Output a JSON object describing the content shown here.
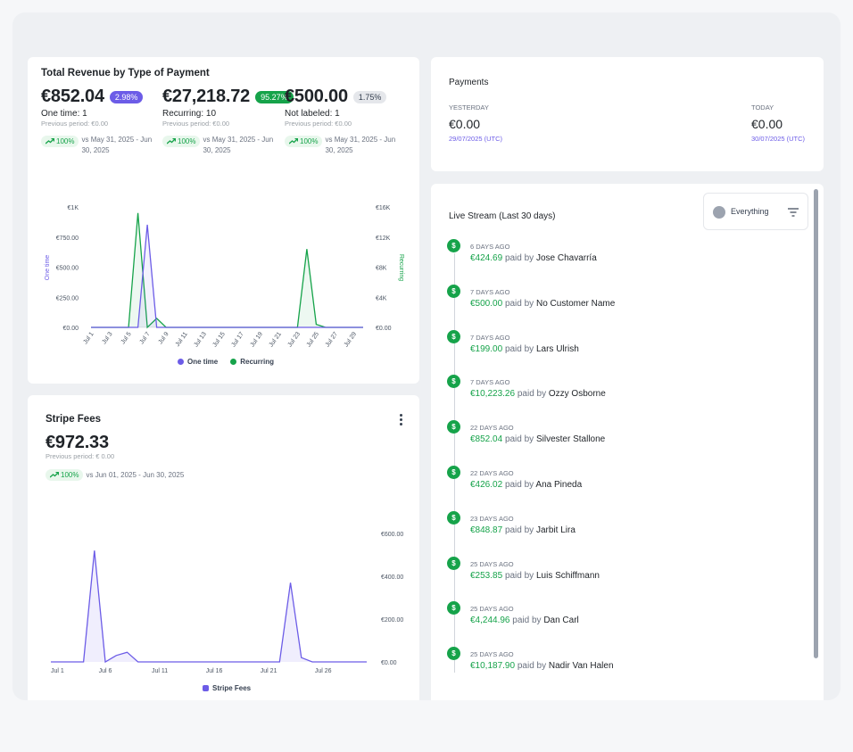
{
  "revenue": {
    "title": "Total Revenue by Type of Payment",
    "metrics": [
      {
        "amount": "€852.04",
        "badge": "2.98%",
        "badge_color": "#6c5ce7",
        "label": "One time: 1",
        "prev": "Previous period: €0.00",
        "trend": "100%",
        "vs": "vs May 31, 2025 - Jun 30, 2025"
      },
      {
        "amount": "€27,218.72",
        "badge": "95.27%",
        "badge_color": "#16a34a",
        "label": "Recurring: 10",
        "prev": "Previous period: €0.00",
        "trend": "100%",
        "vs": "vs May 31, 2025 - Jun 30, 2025"
      },
      {
        "amount": "€500.00",
        "badge": "1.75%",
        "badge_color": "#e5e7eb",
        "label": "Not labeled: 1",
        "prev": "Previous period: €0.00",
        "trend": "100%",
        "vs": "vs May 31, 2025 - Jun 30, 2025"
      }
    ],
    "legend": {
      "one_time": "One time",
      "recurring": "Recurring"
    }
  },
  "payments": {
    "title": "Payments",
    "yesterday_label": "YESTERDAY",
    "yesterday_value": "€0.00",
    "yesterday_date": "29/07/2025 (UTC)",
    "today_label": "TODAY",
    "today_value": "€0.00",
    "today_date": "30/07/2025 (UTC)"
  },
  "fees": {
    "title": "Stripe Fees",
    "amount": "€972.33",
    "prev": "Previous period: € 0.00",
    "trend": "100%",
    "vs": "vs Jun 01, 2025 - Jun 30, 2025",
    "legend": "Stripe Fees"
  },
  "stream": {
    "title": "Live Stream (Last 30 days)",
    "filter": "Everything",
    "paid_by": "paid by",
    "icon_symbol": "$",
    "events": [
      {
        "ago": "6 DAYS AGO",
        "amount": "€424.69",
        "name": "Jose Chavarría"
      },
      {
        "ago": "7 DAYS AGO",
        "amount": "€500.00",
        "name": "No Customer Name"
      },
      {
        "ago": "7 DAYS AGO",
        "amount": "€199.00",
        "name": "Lars Ulrish"
      },
      {
        "ago": "7 DAYS AGO",
        "amount": "€10,223.26",
        "name": "Ozzy Osborne"
      },
      {
        "ago": "22 DAYS AGO",
        "amount": "€852.04",
        "name": "Silvester Stallone"
      },
      {
        "ago": "22 DAYS AGO",
        "amount": "€426.02",
        "name": "Ana Pineda"
      },
      {
        "ago": "23 DAYS AGO",
        "amount": "€848.87",
        "name": "Jarbit Lira"
      },
      {
        "ago": "25 DAYS AGO",
        "amount": "€253.85",
        "name": "Luis Schiffmann"
      },
      {
        "ago": "25 DAYS AGO",
        "amount": "€4,244.96",
        "name": "Dan Carl"
      },
      {
        "ago": "25 DAYS AGO",
        "amount": "€10,187.90",
        "name": "Nadir Van Halen"
      }
    ]
  },
  "chart_data": [
    {
      "type": "area",
      "x": [
        "Jul 1",
        "Jul 2",
        "Jul 3",
        "Jul 4",
        "Jul 5",
        "Jul 6",
        "Jul 7",
        "Jul 8",
        "Jul 9",
        "Jul 10",
        "Jul 11",
        "Jul 12",
        "Jul 13",
        "Jul 14",
        "Jul 15",
        "Jul 16",
        "Jul 17",
        "Jul 18",
        "Jul 19",
        "Jul 20",
        "Jul 21",
        "Jul 22",
        "Jul 23",
        "Jul 24",
        "Jul 25",
        "Jul 26",
        "Jul 27",
        "Jul 28",
        "Jul 29",
        "Jul 30"
      ],
      "x_ticks": [
        "Jul 1",
        "Jul 3",
        "Jul 5",
        "Jul 7",
        "Jul 9",
        "Jul 11",
        "Jul 13",
        "Jul 15",
        "Jul 17",
        "Jul 19",
        "Jul 21",
        "Jul 23",
        "Jul 25",
        "Jul 27",
        "Jul 29"
      ],
      "series": [
        {
          "name": "One time",
          "axis": "left",
          "color": "#6c5ce7",
          "values": [
            0,
            0,
            0,
            0,
            0,
            0,
            852,
            0,
            0,
            0,
            0,
            0,
            0,
            0,
            0,
            0,
            0,
            0,
            0,
            0,
            0,
            0,
            0,
            0,
            0,
            0,
            0,
            0,
            0,
            0
          ]
        },
        {
          "name": "Recurring",
          "axis": "right",
          "color": "#16a34a",
          "values": [
            0,
            0,
            0,
            0,
            0,
            15200,
            0,
            1200,
            0,
            0,
            0,
            0,
            0,
            0,
            0,
            0,
            0,
            0,
            0,
            0,
            0,
            0,
            0,
            10400,
            400,
            0,
            0,
            0,
            0,
            0
          ]
        }
      ],
      "ylabel_left": "One time",
      "ylabel_right": "Recurring",
      "ylim_left": [
        0,
        1000
      ],
      "yticks_left": [
        "€0.00",
        "€250.00",
        "€500.00",
        "€750.00",
        "€1K"
      ],
      "ylim_right": [
        0,
        16000
      ],
      "yticks_right": [
        "€0.00",
        "€4K",
        "€8K",
        "€12K",
        "€16K"
      ]
    },
    {
      "type": "area",
      "x": [
        "Jul 1",
        "Jul 2",
        "Jul 3",
        "Jul 4",
        "Jul 5",
        "Jul 6",
        "Jul 7",
        "Jul 8",
        "Jul 9",
        "Jul 10",
        "Jul 11",
        "Jul 12",
        "Jul 13",
        "Jul 14",
        "Jul 15",
        "Jul 16",
        "Jul 17",
        "Jul 18",
        "Jul 19",
        "Jul 20",
        "Jul 21",
        "Jul 22",
        "Jul 23",
        "Jul 24",
        "Jul 25",
        "Jul 26",
        "Jul 27",
        "Jul 28",
        "Jul 29",
        "Jul 30"
      ],
      "x_ticks": [
        "Jul 1",
        "Jul 6",
        "Jul 11",
        "Jul 16",
        "Jul 21",
        "Jul 26"
      ],
      "series": [
        {
          "name": "Stripe Fees",
          "color": "#6c5ce7",
          "values": [
            0,
            0,
            0,
            0,
            520,
            0,
            30,
            45,
            0,
            0,
            0,
            0,
            0,
            0,
            0,
            0,
            0,
            0,
            0,
            0,
            0,
            0,
            370,
            20,
            0,
            0,
            0,
            0,
            0,
            0
          ]
        }
      ],
      "ylim": [
        0,
        600
      ],
      "yticks": [
        "€0.00",
        "€200.00",
        "€400.00",
        "€600.00"
      ]
    }
  ]
}
